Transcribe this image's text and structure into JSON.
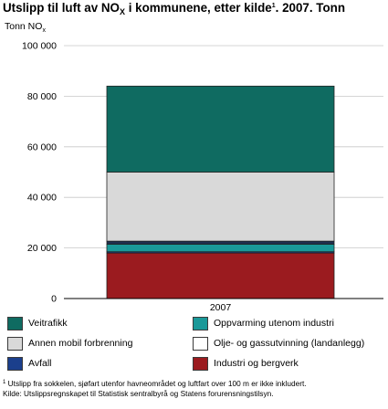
{
  "title": {
    "part1": "Utslipp til luft av NO",
    "sub": "X",
    "part2": " i kommunene, etter kilde",
    "sup": "1",
    "part3": ". 2007. Tonn"
  },
  "chart_data": {
    "type": "bar",
    "stacked": true,
    "ylabel": "Tonn NO",
    "ylabel_sub": "x",
    "categories": [
      "2007"
    ],
    "ylim": [
      0,
      100000
    ],
    "yticks": [
      0,
      20000,
      40000,
      60000,
      80000,
      100000
    ],
    "ytick_labels": [
      "0",
      "20 000",
      "40 000",
      "60 000",
      "80 000",
      "100 000"
    ],
    "grid": true,
    "series": [
      {
        "name": "Industri og bergverk",
        "values": [
          18000
        ],
        "color": "#9b1b1f"
      },
      {
        "name": "Avfall",
        "values": [
          500
        ],
        "color": "#1b3f8c"
      },
      {
        "name": "Oppvarming utenom industri",
        "values": [
          3000
        ],
        "color": "#1a9999"
      },
      {
        "name": "Annen mobil forbrenning",
        "values": [
          1200
        ],
        "color": "#1e2f4f"
      },
      {
        "name": "Olje- og gassutvinning (landanlegg)",
        "values": [
          0
        ],
        "color": "#ffffff"
      },
      {
        "name": "Annen mobil forbrenning",
        "values": [
          27300
        ],
        "color": "#d9d9d9"
      },
      {
        "name": "Veitrafikk",
        "values": [
          34000
        ],
        "color": "#0f6b61"
      }
    ]
  },
  "legend": [
    {
      "label": "Veitrafikk",
      "color": "#0f6b61"
    },
    {
      "label": "Oppvarming utenom industri",
      "color": "#1a9999"
    },
    {
      "label": "Annen mobil forbrenning",
      "color": "#d9d9d9"
    },
    {
      "label": "Olje- og gassutvinning (landanlegg)",
      "color": "#ffffff"
    },
    {
      "label": "Avfall",
      "color": "#1b3f8c"
    },
    {
      "label": "Industri og bergverk",
      "color": "#9b1b1f"
    }
  ],
  "footnote": {
    "sup": "1",
    "line1": " Utslipp fra sokkelen, sjøfart utenfor havneområdet og luftfart over 100 m er ikke inkludert.",
    "line2": "Kilde: Utslippsregnskapet til Statistisk sentralbyrå og Statens forurensningstilsyn."
  }
}
